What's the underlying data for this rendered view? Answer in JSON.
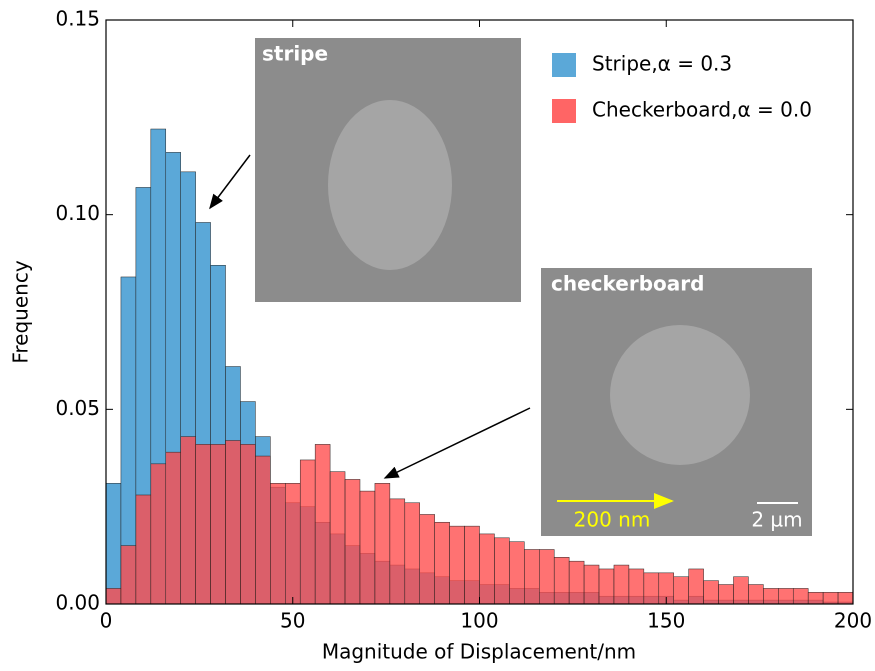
{
  "chart_data": {
    "type": "histogram",
    "xlabel": "Magnitude of Displacement/nm",
    "ylabel": "Frequency",
    "bins": [
      0,
      4,
      8,
      12,
      16,
      20,
      24,
      28,
      32,
      36,
      40,
      44,
      48,
      52,
      56,
      60,
      64,
      68,
      72,
      76,
      80,
      84,
      88,
      92,
      96,
      100,
      104,
      108,
      112,
      116,
      120,
      124,
      128,
      132,
      136,
      140,
      144,
      148,
      152,
      156,
      160,
      164,
      168,
      172,
      176,
      180,
      184,
      188,
      192,
      196,
      200
    ],
    "series": [
      {
        "name": "Stripe,α = 0.3",
        "color": "#5ba8d8",
        "values": [
          0.031,
          0.084,
          0.107,
          0.122,
          0.116,
          0.111,
          0.098,
          0.087,
          0.061,
          0.052,
          0.043,
          0.03,
          0.026,
          0.025,
          0.021,
          0.018,
          0.015,
          0.013,
          0.011,
          0.01,
          0.009,
          0.008,
          0.007,
          0.006,
          0.006,
          0.005,
          0.005,
          0.004,
          0.004,
          0.003,
          0.003,
          0.003,
          0.003,
          0.002,
          0.002,
          0.002,
          0.002,
          0.002,
          0.001,
          0.002,
          0.001,
          0.001,
          0.001,
          0.001,
          0.001,
          0.001,
          0.001,
          0.001,
          0.0005,
          0.0005
        ]
      },
      {
        "name": "Checkerboard,α = 0.0",
        "color": "#ff4a4a",
        "values": [
          0.004,
          0.015,
          0.028,
          0.036,
          0.039,
          0.043,
          0.041,
          0.041,
          0.042,
          0.041,
          0.038,
          0.031,
          0.031,
          0.037,
          0.041,
          0.034,
          0.032,
          0.029,
          0.031,
          0.027,
          0.026,
          0.023,
          0.021,
          0.02,
          0.02,
          0.018,
          0.017,
          0.016,
          0.014,
          0.014,
          0.012,
          0.011,
          0.01,
          0.009,
          0.01,
          0.009,
          0.008,
          0.008,
          0.007,
          0.009,
          0.006,
          0.005,
          0.007,
          0.005,
          0.004,
          0.004,
          0.004,
          0.003,
          0.003,
          0.003
        ]
      }
    ],
    "xlim": [
      0,
      200
    ],
    "ylim": [
      0,
      0.15
    ],
    "xticks": [
      0,
      50,
      100,
      150,
      200
    ],
    "yticks": [
      {
        "value": 0,
        "label": "0.00"
      },
      {
        "value": 0.05,
        "label": "0.05"
      },
      {
        "value": 0.1,
        "label": "0.10"
      },
      {
        "value": 0.15,
        "label": "0.15"
      }
    ],
    "legend": "upper right",
    "insets": [
      {
        "label": "stripe"
      },
      {
        "label": "checkerboard",
        "scale_arrow": "200 nm",
        "scale_bar": "2 µm"
      }
    ]
  }
}
